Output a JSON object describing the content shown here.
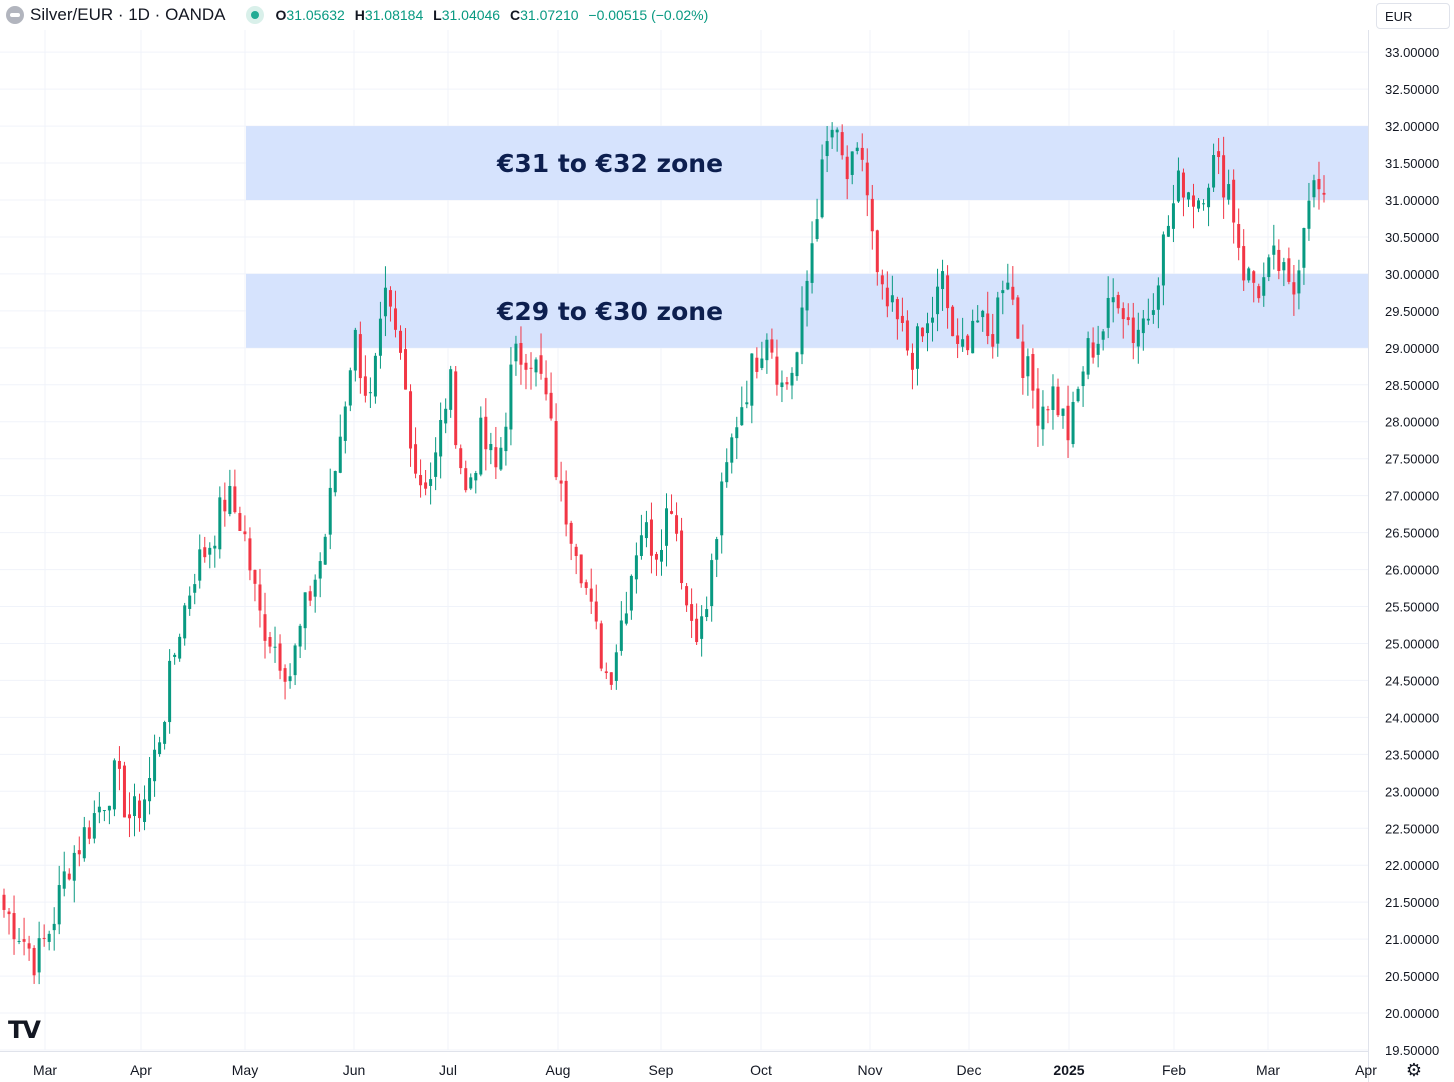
{
  "header": {
    "symbol": "Silver/EUR · 1D · OANDA",
    "open_label": "O",
    "open": "31.05632",
    "high_label": "H",
    "high": "31.08184",
    "low_label": "L",
    "low": "31.04046",
    "close_label": "C",
    "close": "31.07210",
    "change": "−0.00515 (−0.02%)",
    "currency": "EUR"
  },
  "colors": {
    "up": "#089981",
    "down": "#f23645",
    "zone_fill": "#d6e3fd",
    "zone_text": "#0d1f4f"
  },
  "chart_data": {
    "type": "candlestick",
    "x_labels": [
      "Mar",
      "Apr",
      "May",
      "Jun",
      "Jul",
      "Aug",
      "Sep",
      "Oct",
      "Nov",
      "Dec",
      "2025",
      "Feb",
      "Mar",
      "Apr"
    ],
    "y_ticks": [
      "19.50000",
      "20.00000",
      "20.50000",
      "21.00000",
      "21.50000",
      "22.00000",
      "22.50000",
      "23.00000",
      "23.50000",
      "24.00000",
      "24.50000",
      "25.00000",
      "25.50000",
      "26.00000",
      "26.50000",
      "27.00000",
      "27.50000",
      "28.00000",
      "28.50000",
      "29.00000",
      "29.50000",
      "30.00000",
      "30.50000",
      "31.00000",
      "31.50000",
      "32.00000",
      "32.50000",
      "33.00000"
    ],
    "ylim": [
      19.5,
      33.3
    ],
    "zones": [
      {
        "label": "€31 to €32 zone",
        "low": 31,
        "high": 32
      },
      {
        "label": "€29 to €30 zone",
        "low": 29,
        "high": 30
      }
    ],
    "anchors": [
      21.4,
      21.1,
      20.7,
      21.2,
      22.0,
      22.4,
      22.8,
      23.2,
      22.6,
      23.0,
      24.0,
      25.2,
      26.0,
      26.4,
      27.0,
      26.6,
      25.4,
      25.0,
      24.6,
      25.5,
      26.2,
      27.6,
      29.2,
      28.2,
      29.6,
      28.8,
      27.2,
      27.3,
      28.6,
      27.0,
      27.8,
      27.3,
      28.8,
      29.0,
      28.4,
      27.0,
      26.4,
      25.3,
      24.5,
      25.5,
      26.6,
      26.3,
      27.0,
      25.4,
      25.2,
      26.8,
      28.0,
      28.7,
      29.3,
      28.4,
      29.0,
      30.8,
      32.0,
      31.3,
      31.6,
      29.7,
      29.4,
      28.9,
      29.2,
      29.9,
      28.8,
      29.5,
      29.0,
      30.2,
      28.9,
      28.2,
      28.4,
      27.8,
      28.9,
      29.2,
      29.8,
      29.2,
      29.5,
      30.5,
      31.3,
      31.0,
      31.5,
      31.2,
      30.0,
      29.8,
      30.2,
      29.6,
      31.2,
      31.05
    ]
  }
}
